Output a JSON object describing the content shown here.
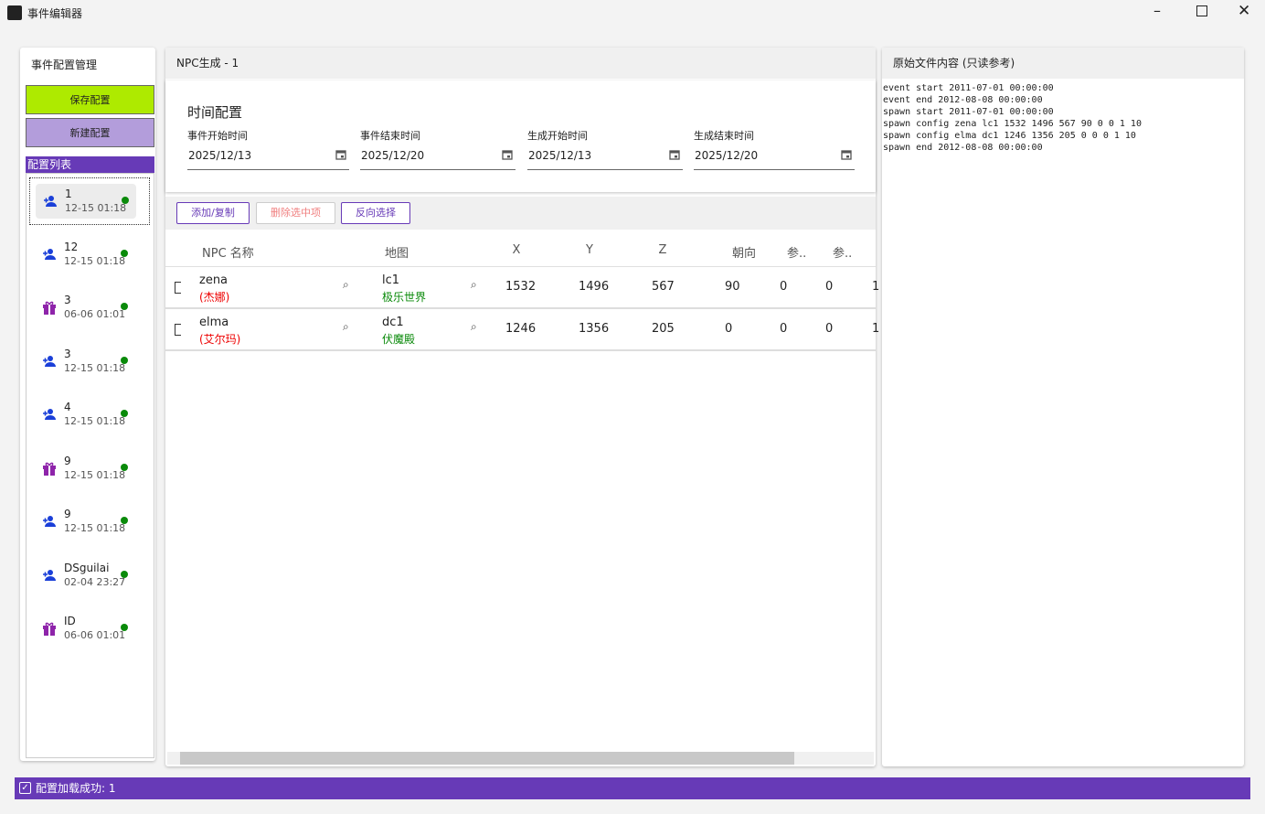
{
  "window": {
    "title": "事件编辑器"
  },
  "sidebar": {
    "title": "事件配置管理",
    "buttons": [
      "保存配置",
      "新建配置"
    ],
    "list_title": "配置列表",
    "items": [
      {
        "name": "1",
        "time": "12-15 01:18",
        "icon": "person",
        "selected": true
      },
      {
        "name": "12",
        "time": "12-15 01:18",
        "icon": "person"
      },
      {
        "name": "3",
        "time": "06-06 01:01",
        "icon": "gift"
      },
      {
        "name": "3",
        "time": "12-15 01:18",
        "icon": "person"
      },
      {
        "name": "4",
        "time": "12-15 01:18",
        "icon": "person"
      },
      {
        "name": "9",
        "time": "12-15 01:18",
        "icon": "gift"
      },
      {
        "name": "9",
        "time": "12-15 01:18",
        "icon": "person"
      },
      {
        "name": "DSguilai",
        "time": "02-04 23:27",
        "icon": "person"
      },
      {
        "name": "ID",
        "time": "06-06 01:01",
        "icon": "gift"
      }
    ]
  },
  "editor": {
    "title": "NPC生成 - 1",
    "time_section": {
      "title": "时间配置",
      "fields": [
        {
          "label": "事件开始时间",
          "value": "2025/12/13"
        },
        {
          "label": "事件结束时间",
          "value": "2025/12/20"
        },
        {
          "label": "生成开始时间",
          "value": "2025/12/13"
        },
        {
          "label": "生成结束时间",
          "value": "2025/12/20"
        }
      ]
    },
    "toolbar": [
      "添加/复制",
      "删除选中项",
      "反向选择"
    ],
    "table": {
      "columns": [
        "NPC 名称",
        "地图",
        "X",
        "Y",
        "Z",
        "朝向",
        "参..",
        "参.."
      ],
      "rows": [
        {
          "name": "zena",
          "alias": "(杰娜)",
          "map": "lc1",
          "map_name": "极乐世界",
          "cells": [
            1532,
            1496,
            567,
            90,
            0,
            0,
            1
          ]
        },
        {
          "name": "elma",
          "alias": "(艾尔玛)",
          "map": "dc1",
          "map_name": "伏魔殿",
          "cells": [
            1246,
            1356,
            205,
            0,
            0,
            0,
            1
          ]
        }
      ]
    }
  },
  "raw": {
    "title": "原始文件内容 (只读参考)",
    "lines": [
      "event start 2011-07-01 00:00:00",
      "event end 2012-08-08 00:00:00",
      "spawn start 2011-07-01 00:00:00",
      "spawn config zena lc1 1532 1496 567 90 0 0 1 10",
      "spawn config elma dc1 1246 1356 205 0 0 0 1 10",
      "spawn end 2012-08-08 00:00:00"
    ]
  },
  "status": "配置加载成功: 1"
}
